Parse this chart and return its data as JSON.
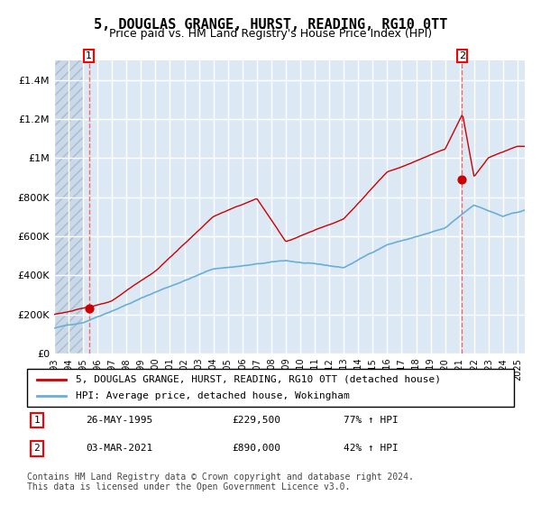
{
  "title": "5, DOUGLAS GRANGE, HURST, READING, RG10 0TT",
  "subtitle": "Price paid vs. HM Land Registry's House Price Index (HPI)",
  "ylabel_ticks": [
    "£0",
    "£200K",
    "£400K",
    "£600K",
    "£800K",
    "£1M",
    "£1.2M",
    "£1.4M"
  ],
  "ylim": [
    0,
    1500000
  ],
  "xlim_start": 1993.0,
  "xlim_end": 2025.5,
  "hpi_line_color": "#6aaed6",
  "price_line_color": "#cc0000",
  "dot_color": "#cc0000",
  "bg_color": "#dce9f5",
  "hatch_color": "#b0c4d8",
  "grid_color": "#ffffff",
  "dashed_line_color": "#ff4444",
  "sale1_year": 1995.4,
  "sale1_price": 229500,
  "sale2_year": 2021.17,
  "sale2_price": 890000,
  "legend_label1": "5, DOUGLAS GRANGE, HURST, READING, RG10 0TT (detached house)",
  "legend_label2": "HPI: Average price, detached house, Wokingham",
  "table_row1": [
    "1",
    "26-MAY-1995",
    "£229,500",
    "77% ↑ HPI"
  ],
  "table_row2": [
    "2",
    "03-MAR-2021",
    "£890,000",
    "42% ↑ HPI"
  ],
  "footer": "Contains HM Land Registry data © Crown copyright and database right 2024.\nThis data is licensed under the Open Government Licence v3.0.",
  "title_fontsize": 11,
  "subtitle_fontsize": 9,
  "tick_fontsize": 8,
  "legend_fontsize": 8,
  "table_fontsize": 8,
  "footer_fontsize": 7
}
